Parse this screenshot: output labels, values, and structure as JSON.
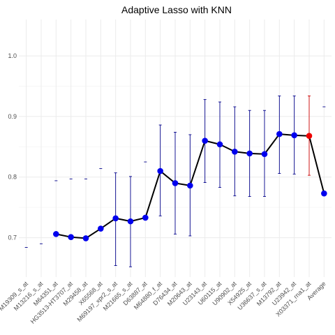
{
  "chart_data": {
    "type": "line",
    "title": "Adaptive Lasso  with KNN",
    "xlabel": "",
    "ylabel": "",
    "ylim": [
      0.635,
      1.06
    ],
    "yticks": [
      0.7,
      0.8,
      0.9,
      1.0
    ],
    "ytick_labels": [
      "0.7",
      "0.8",
      "0.9",
      "1.0"
    ],
    "grid": true,
    "categories": [
      "M19309_s_at",
      "M13216_s_at",
      "M64351_at",
      "HG3513-HT3707_at",
      "M29458_at",
      "X65568_at",
      "M69197_xpr2_s_at",
      "M21665_s_at",
      "D63887_at",
      "M64880_f_at",
      "D76434_at",
      "M20643_at",
      "U23143_at",
      "U60115_at",
      "U90902_at",
      "X54925_at",
      "U36637_s_at",
      "M13792_at",
      "U23942_at",
      "X03371_rna1_at",
      "Average"
    ],
    "series": [
      {
        "values": [
          null,
          null,
          0.706,
          0.701,
          0.699,
          0.715,
          0.732,
          0.727,
          0.733,
          0.81,
          0.79,
          0.786,
          0.86,
          0.854,
          0.842,
          0.839,
          0.838,
          0.871,
          0.869,
          0.868,
          0.773
        ],
        "err_low": [
          null,
          null,
          null,
          null,
          null,
          null,
          0.654,
          0.652,
          null,
          0.736,
          0.706,
          0.703,
          0.791,
          0.783,
          0.769,
          0.768,
          0.768,
          0.806,
          0.805,
          0.803,
          null
        ],
        "err_high": [
          0.684,
          0.69,
          0.794,
          0.797,
          0.797,
          0.814,
          0.807,
          0.801,
          0.825,
          0.886,
          0.874,
          0.87,
          0.928,
          0.924,
          0.916,
          0.91,
          0.91,
          0.934,
          0.934,
          0.934,
          0.916
        ]
      }
    ],
    "colors": {
      "line": "#000000",
      "point": "#0000ee",
      "highlight": "#ee0000",
      "errorbar": "#00008b",
      "highlight_errorbar": "#cc0000",
      "grid": "#ebebeb"
    },
    "highlight_index": 19
  }
}
